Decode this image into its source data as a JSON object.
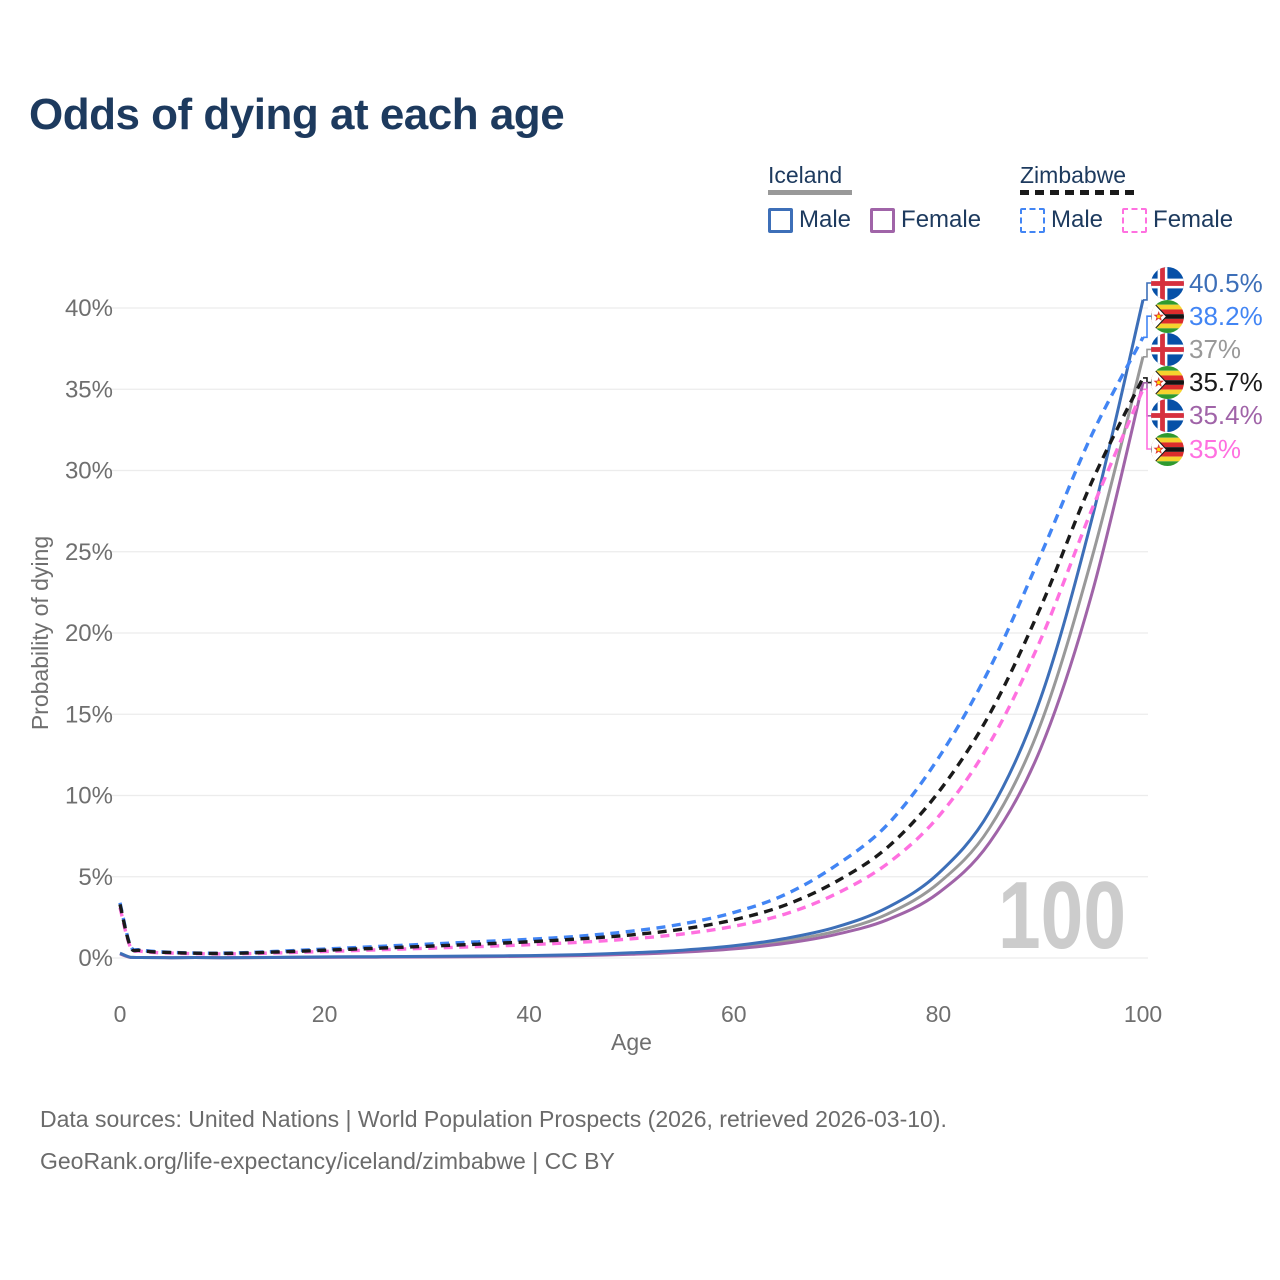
{
  "title": "Odds of dying at each age",
  "legend": {
    "groups": [
      {
        "country": "Iceland",
        "line_style": "solid",
        "underline_color": "#999999",
        "items": [
          {
            "label": "Male",
            "color": "#3d6fb8"
          },
          {
            "label": "Female",
            "color": "#a064a8"
          }
        ]
      },
      {
        "country": "Zimbabwe",
        "line_style": "dashed",
        "underline_color": "#1a1a1a",
        "items": [
          {
            "label": "Male",
            "color": "#4285f4"
          },
          {
            "label": "Female",
            "color": "#ff70e0"
          }
        ]
      }
    ]
  },
  "chart_data": {
    "type": "line",
    "title": "Odds of dying at each age",
    "xlabel": "Age",
    "ylabel": "Probability of dying",
    "xlim": [
      0,
      100
    ],
    "ylim": [
      0,
      42
    ],
    "xticks": [
      "0",
      "20",
      "40",
      "60",
      "80",
      "100"
    ],
    "xtick_values": [
      0,
      20,
      40,
      60,
      80,
      100
    ],
    "yticks": [
      "0%",
      "5%",
      "10%",
      "15%",
      "20%",
      "25%",
      "30%",
      "35%",
      "40%"
    ],
    "ytick_values": [
      0,
      5,
      10,
      15,
      20,
      25,
      30,
      35,
      40
    ],
    "grid": "horizontal",
    "legend_position": "top-right",
    "watermark": "100",
    "unit": "percent",
    "series": [
      {
        "name": "Iceland Male",
        "country": "Iceland",
        "sex": "Male",
        "style": "solid",
        "color": "#3d6fb8",
        "end_value_label": "40.5%",
        "points": [
          [
            0,
            0.3
          ],
          [
            1,
            0.05
          ],
          [
            2,
            0.03
          ],
          [
            5,
            0.02
          ],
          [
            10,
            0.02
          ],
          [
            15,
            0.04
          ],
          [
            20,
            0.07
          ],
          [
            25,
            0.08
          ],
          [
            30,
            0.1
          ],
          [
            35,
            0.12
          ],
          [
            40,
            0.15
          ],
          [
            45,
            0.21
          ],
          [
            50,
            0.32
          ],
          [
            55,
            0.48
          ],
          [
            60,
            0.75
          ],
          [
            65,
            1.2
          ],
          [
            70,
            1.9
          ],
          [
            75,
            3.1
          ],
          [
            80,
            5.2
          ],
          [
            85,
            9.0
          ],
          [
            90,
            16.0
          ],
          [
            95,
            27.0
          ],
          [
            100,
            40.5
          ]
        ]
      },
      {
        "name": "Zimbabwe Male",
        "country": "Zimbabwe",
        "sex": "Male",
        "style": "dashed",
        "color": "#4285f4",
        "end_value_label": "38.2%",
        "points": [
          [
            0,
            3.4
          ],
          [
            1,
            0.8
          ],
          [
            2,
            0.5
          ],
          [
            5,
            0.35
          ],
          [
            10,
            0.3
          ],
          [
            15,
            0.4
          ],
          [
            20,
            0.55
          ],
          [
            25,
            0.7
          ],
          [
            30,
            0.85
          ],
          [
            35,
            1.0
          ],
          [
            40,
            1.15
          ],
          [
            45,
            1.35
          ],
          [
            50,
            1.65
          ],
          [
            55,
            2.1
          ],
          [
            60,
            2.8
          ],
          [
            65,
            3.9
          ],
          [
            70,
            5.7
          ],
          [
            75,
            8.2
          ],
          [
            80,
            12.3
          ],
          [
            85,
            17.8
          ],
          [
            90,
            24.8
          ],
          [
            95,
            32.2
          ],
          [
            100,
            38.2
          ]
        ]
      },
      {
        "name": "Iceland Both sexes",
        "country": "Iceland",
        "sex": "Both",
        "style": "solid",
        "color": "#999999",
        "end_value_label": "37%",
        "points": [
          [
            0,
            0.27
          ],
          [
            1,
            0.05
          ],
          [
            2,
            0.03
          ],
          [
            5,
            0.02
          ],
          [
            10,
            0.02
          ],
          [
            15,
            0.03
          ],
          [
            20,
            0.06
          ],
          [
            25,
            0.07
          ],
          [
            30,
            0.08
          ],
          [
            35,
            0.1
          ],
          [
            40,
            0.13
          ],
          [
            45,
            0.18
          ],
          [
            50,
            0.28
          ],
          [
            55,
            0.42
          ],
          [
            60,
            0.65
          ],
          [
            65,
            1.05
          ],
          [
            70,
            1.65
          ],
          [
            75,
            2.7
          ],
          [
            80,
            4.6
          ],
          [
            85,
            8.0
          ],
          [
            90,
            14.4
          ],
          [
            95,
            24.6
          ],
          [
            100,
            37.0
          ]
        ]
      },
      {
        "name": "Zimbabwe Both sexes",
        "country": "Zimbabwe",
        "sex": "Both",
        "style": "dashed",
        "color": "#1a1a1a",
        "end_value_label": "35.7%",
        "points": [
          [
            0,
            3.3
          ],
          [
            1,
            0.75
          ],
          [
            2,
            0.46
          ],
          [
            5,
            0.33
          ],
          [
            10,
            0.28
          ],
          [
            15,
            0.36
          ],
          [
            20,
            0.48
          ],
          [
            25,
            0.6
          ],
          [
            30,
            0.72
          ],
          [
            35,
            0.85
          ],
          [
            40,
            1.0
          ],
          [
            45,
            1.18
          ],
          [
            50,
            1.42
          ],
          [
            55,
            1.78
          ],
          [
            60,
            2.35
          ],
          [
            65,
            3.25
          ],
          [
            70,
            4.7
          ],
          [
            75,
            6.8
          ],
          [
            80,
            10.2
          ],
          [
            85,
            15.0
          ],
          [
            90,
            21.6
          ],
          [
            95,
            29.3
          ],
          [
            100,
            35.7
          ]
        ]
      },
      {
        "name": "Iceland Female",
        "country": "Iceland",
        "sex": "Female",
        "style": "solid",
        "color": "#a064a8",
        "end_value_label": "35.4%",
        "points": [
          [
            0,
            0.25
          ],
          [
            1,
            0.04
          ],
          [
            2,
            0.03
          ],
          [
            5,
            0.02
          ],
          [
            10,
            0.02
          ],
          [
            15,
            0.03
          ],
          [
            20,
            0.04
          ],
          [
            25,
            0.05
          ],
          [
            30,
            0.06
          ],
          [
            35,
            0.08
          ],
          [
            40,
            0.11
          ],
          [
            45,
            0.15
          ],
          [
            50,
            0.23
          ],
          [
            55,
            0.36
          ],
          [
            60,
            0.56
          ],
          [
            65,
            0.9
          ],
          [
            70,
            1.45
          ],
          [
            75,
            2.35
          ],
          [
            80,
            4.0
          ],
          [
            85,
            7.1
          ],
          [
            90,
            12.9
          ],
          [
            95,
            22.4
          ],
          [
            100,
            35.4
          ]
        ]
      },
      {
        "name": "Zimbabwe Female",
        "country": "Zimbabwe",
        "sex": "Female",
        "style": "dashed",
        "color": "#ff70e0",
        "end_value_label": "35%",
        "points": [
          [
            0,
            3.1
          ],
          [
            1,
            0.7
          ],
          [
            2,
            0.42
          ],
          [
            5,
            0.3
          ],
          [
            10,
            0.25
          ],
          [
            15,
            0.31
          ],
          [
            20,
            0.4
          ],
          [
            25,
            0.5
          ],
          [
            30,
            0.6
          ],
          [
            35,
            0.7
          ],
          [
            40,
            0.82
          ],
          [
            45,
            0.97
          ],
          [
            50,
            1.18
          ],
          [
            55,
            1.48
          ],
          [
            60,
            1.95
          ],
          [
            65,
            2.7
          ],
          [
            70,
            3.95
          ],
          [
            75,
            5.8
          ],
          [
            80,
            8.7
          ],
          [
            85,
            13.2
          ],
          [
            90,
            19.6
          ],
          [
            95,
            27.6
          ],
          [
            100,
            35.0
          ]
        ]
      }
    ],
    "end_labels": [
      {
        "text": "40.5%",
        "value": 40.5,
        "flag": "iceland",
        "color": "#3d6fb8"
      },
      {
        "text": "38.2%",
        "value": 38.2,
        "flag": "zimbabwe",
        "color": "#4285f4"
      },
      {
        "text": "37%",
        "value": 37.0,
        "flag": "iceland",
        "color": "#999999"
      },
      {
        "text": "35.7%",
        "value": 35.7,
        "flag": "zimbabwe",
        "color": "#1a1a1a"
      },
      {
        "text": "35.4%",
        "value": 35.4,
        "flag": "iceland",
        "color": "#a064a8"
      },
      {
        "text": "35%",
        "value": 35.0,
        "flag": "zimbabwe",
        "color": "#ff70e0"
      }
    ]
  },
  "colors": {
    "title_text": "#1d3a5e",
    "axis_text": "#6f6f6f",
    "gridline": "#ececec",
    "watermark": "#cccccc",
    "footer_text": "#6b6b6b"
  },
  "footer": {
    "line1": "Data sources: United Nations | World Population Prospects (2026, retrieved 2026-03-10).",
    "line2": "GeoRank.org/life-expectancy/iceland/zimbabwe | CC BY"
  }
}
